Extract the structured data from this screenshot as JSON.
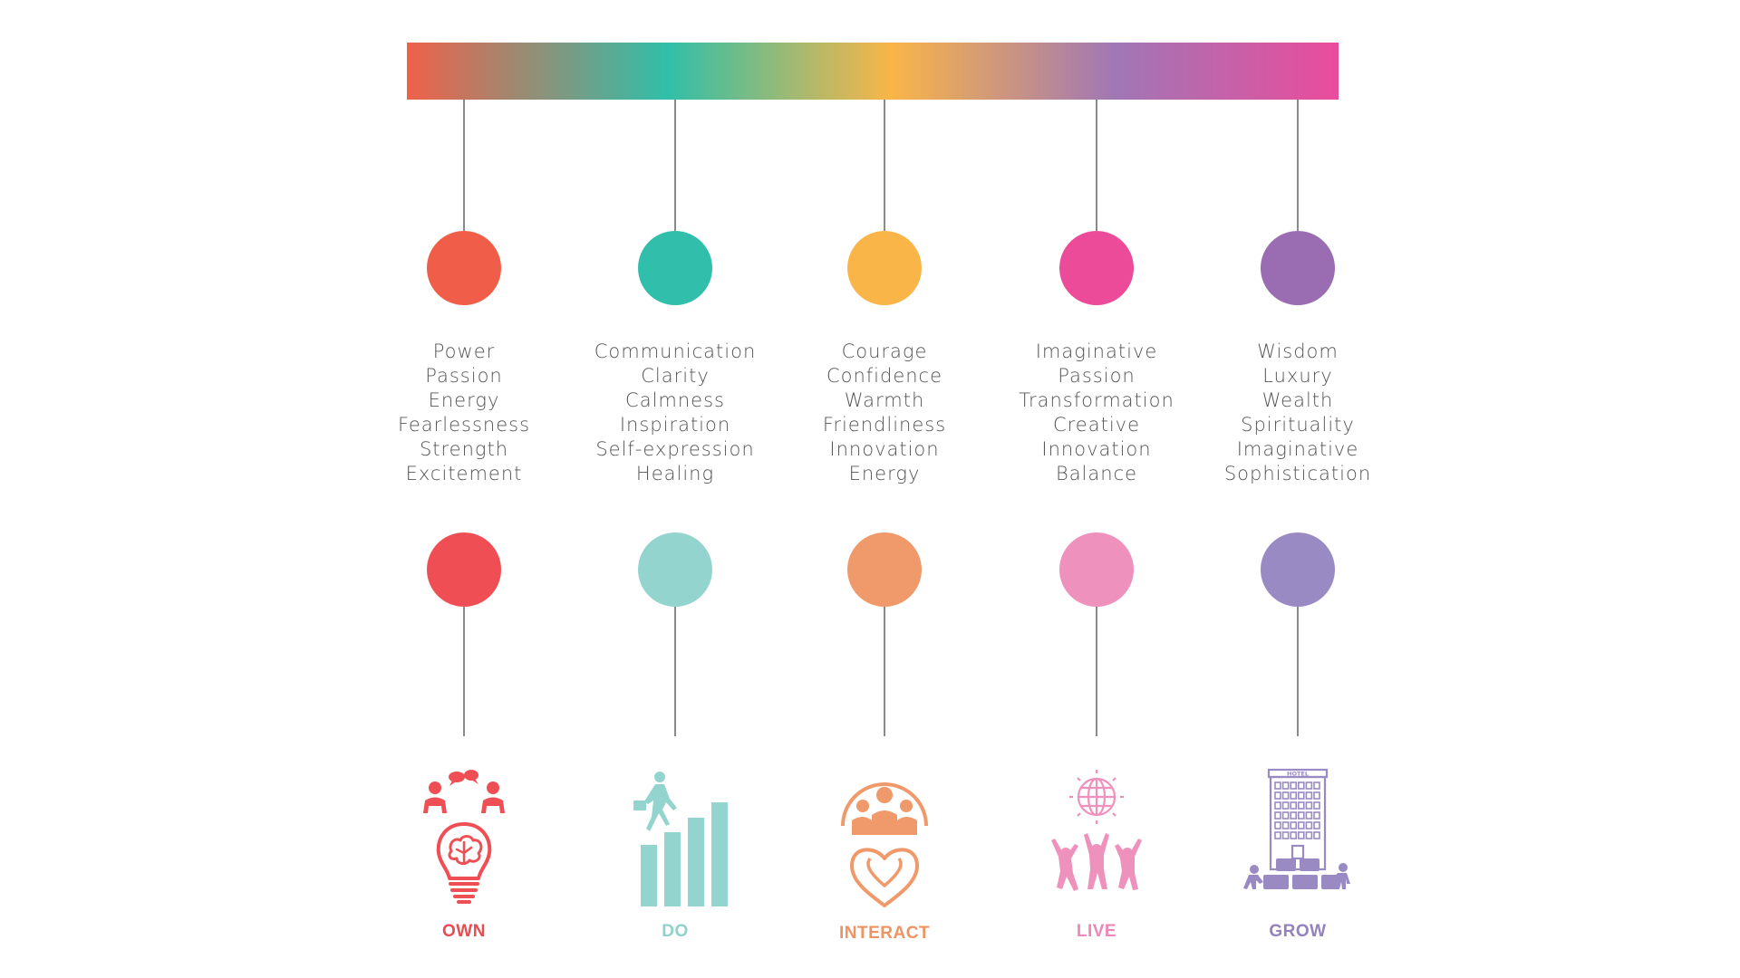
{
  "bar": {
    "colors": [
      "#ef6149",
      "#30bfa9",
      "#f9b548",
      "#a077b5",
      "#ea4c9c"
    ]
  },
  "columns": [
    {
      "key": "own",
      "top_color": "#f05d48",
      "bottom_color": "#ef4f54",
      "label_color": "#e94c50",
      "words": [
        "Power",
        "Passion",
        "Energy",
        "Fearlessness",
        "Strength",
        "Excitement"
      ],
      "label": "OWN",
      "icon": "brainstorm-lightbulb-icon"
    },
    {
      "key": "do",
      "top_color": "#31bfab",
      "bottom_color": "#94d4cf",
      "label_color": "#8fd1cb",
      "words": [
        "Communication",
        "Clarity",
        "Calmness",
        "Inspiration",
        "Self-expression",
        "Healing"
      ],
      "label": "DO",
      "icon": "growth-chart-climber-icon"
    },
    {
      "key": "interact",
      "top_color": "#fab548",
      "bottom_color": "#f0996a",
      "label_color": "#ef9363",
      "words": [
        "Courage",
        "Confidence",
        "Warmth",
        "Friendliness",
        "Innovation",
        "Energy"
      ],
      "label": "INTERACT",
      "icon": "community-hearts-icon"
    },
    {
      "key": "live",
      "top_color": "#ec4b9a",
      "bottom_color": "#ef91bd",
      "label_color": "#ef86b8",
      "words": [
        "Imaginative",
        "Passion",
        "Transformation",
        "Creative",
        "Innovation",
        "Balance"
      ],
      "label": "LIVE",
      "icon": "global-celebration-icon"
    },
    {
      "key": "grow",
      "top_color": "#9a6cb2",
      "bottom_color": "#9a8ac3",
      "label_color": "#9581bd",
      "words": [
        "Wisdom",
        "Luxury",
        "Wealth",
        "Spirituality",
        "Imaginative",
        "Sophistication"
      ],
      "label": "GROW",
      "icon": "hotel-building-icon",
      "icon_sign": "HOTEL"
    }
  ]
}
